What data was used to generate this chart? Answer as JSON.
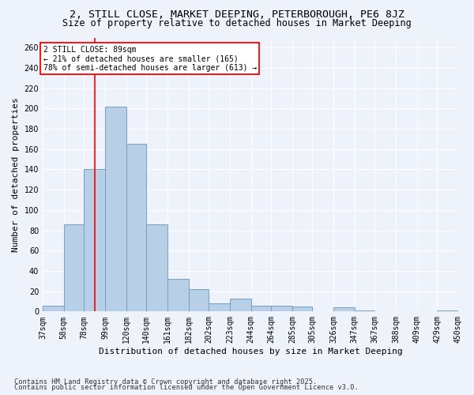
{
  "title1": "2, STILL CLOSE, MARKET DEEPING, PETERBOROUGH, PE6 8JZ",
  "title2": "Size of property relative to detached houses in Market Deeping",
  "xlabel": "Distribution of detached houses by size in Market Deeping",
  "ylabel": "Number of detached properties",
  "footnote1": "Contains HM Land Registry data © Crown copyright and database right 2025.",
  "footnote2": "Contains public sector information licensed under the Open Government Licence v3.0.",
  "bar_color": "#b8cfe8",
  "bar_edge_color": "#7a9ec0",
  "background_color": "#eef2fa",
  "grid_color": "#ffffff",
  "red_line_x": 89,
  "annotation_text": "2 STILL CLOSE: 89sqm\n← 21% of detached houses are smaller (165)\n78% of semi-detached houses are larger (613) →",
  "bins": [
    37,
    58,
    78,
    99,
    120,
    140,
    161,
    182,
    202,
    223,
    244,
    264,
    285,
    305,
    326,
    347,
    367,
    388,
    409,
    429,
    450
  ],
  "bar_heights": [
    6,
    86,
    140,
    202,
    165,
    86,
    32,
    22,
    8,
    13,
    6,
    6,
    5,
    0,
    4,
    1,
    0,
    0,
    0,
    1
  ],
  "ylim": [
    0,
    270
  ],
  "yticks": [
    0,
    20,
    40,
    60,
    80,
    100,
    120,
    140,
    160,
    180,
    200,
    220,
    240,
    260
  ],
  "title1_fontsize": 9.5,
  "title2_fontsize": 8.5,
  "axis_label_fontsize": 8,
  "tick_fontsize": 7,
  "footnote_fontsize": 6.2
}
